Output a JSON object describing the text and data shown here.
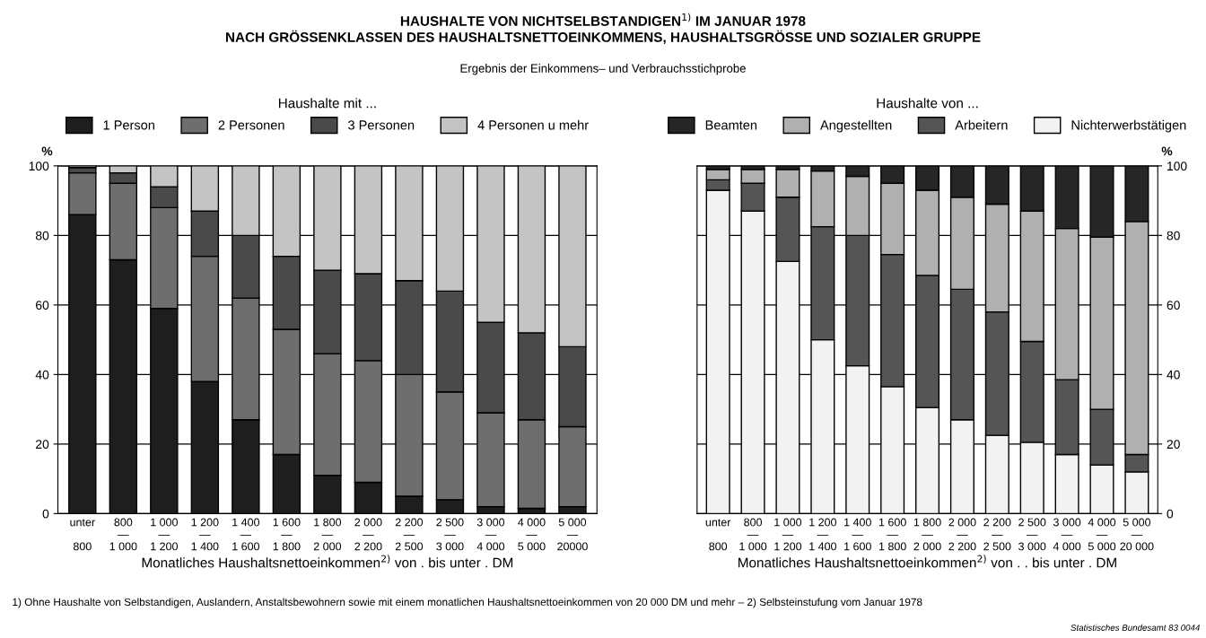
{
  "chart_data": [
    {
      "type": "bar",
      "stacked": true,
      "title": "HAUSHALTE VON NICHTSELBSTANDIGEN$^{1)}$ IM JANUAR 1978\nNACH GRÖSSENKLASSEN DES HAUSHALTSNETTOEINKOMMENS, HAUSHALTSGRÖSSE UND SOZIALER GRUPPE",
      "subtitle": "Ergebnis der Einkommens– und Verbrauchsstichprobe",
      "legend_title": "Haushalte mit ...",
      "xlabel": "Monatliches Haushaltsnettoeinkommen$^{2)}$ von . bis unter . DM",
      "ylabel": "%",
      "categories": [
        "unter\n\n800",
        "800\n—\n1 000",
        "1 000\n—\n1 200",
        "1 200\n—\n1 400",
        "1 400\n—\n1 600",
        "1 600\n—\n1 800",
        "1 800\n—\n2 000",
        "2 000\n—\n2 200",
        "2 200\n—\n2 500",
        "2 500\n—\n3 000",
        "3 000\n—\n4 000",
        "4 000\n—\n5 000",
        "5 000\n—\n20000"
      ],
      "series": [
        {
          "name": "1 Person",
          "color": "#1e1e1e",
          "values": [
            86,
            73,
            59,
            38,
            27,
            17,
            11,
            9,
            5,
            4,
            2,
            1.5,
            2
          ]
        },
        {
          "name": "2 Personen",
          "color": "#6e6e6e",
          "values": [
            12,
            22,
            29,
            36,
            35,
            36,
            35,
            35,
            35,
            31,
            27,
            25.5,
            23
          ]
        },
        {
          "name": "3 Personen",
          "color": "#4a4a4a",
          "values": [
            1.5,
            3,
            6,
            13,
            18,
            21,
            24,
            25,
            27,
            29,
            26,
            25,
            23
          ]
        },
        {
          "name": "4 Personen u mehr",
          "color": "#c4c4c4",
          "values": [
            0.5,
            2,
            6,
            13,
            20,
            26,
            30,
            31,
            33,
            36,
            45,
            48,
            52
          ]
        }
      ],
      "ylim": [
        0,
        100
      ],
      "yticks": [
        0,
        20,
        40,
        60,
        80,
        100
      ],
      "grid": "y",
      "legend": "top",
      "annotations": [
        "1) Ohne Haushalte von Selbstandigen, Auslandern, Anstaltsbewohnern sowie mit einem monatlichen Haushaltsnettoeinkommen von 20 000 DM und mehr – 2) Selbsteinstufung vom Januar 1978",
        "Statistisches Bundesamt 83 0044"
      ]
    },
    {
      "type": "bar",
      "stacked": true,
      "legend_title": "Haushalte von ...",
      "xlabel": "Monatliches Haushaltsnettoeinkommen$^{2)}$ von . . bis unter . DM",
      "y2label": "%",
      "categories": [
        "unter\n\n800",
        "800\n—\n1 000",
        "1 000\n—\n1 200",
        "1 200\n—\n1 400",
        "1 400\n—\n1 600",
        "1 600\n—\n1 800",
        "1 800\n—\n2 000",
        "2 000\n—\n2 200",
        "2 200\n—\n2 500",
        "2 500\n—\n3 000",
        "3 000\n—\n4 000",
        "4 000\n—\n5 000",
        "5 000\n—\n20 000"
      ],
      "series": [
        {
          "name": "Nichterwerbstätigen",
          "color": "#f2f2f2",
          "axis": "y2",
          "values": [
            93,
            87,
            72.5,
            50,
            42.5,
            36.5,
            30.5,
            27,
            22.5,
            20.5,
            17,
            14,
            12
          ]
        },
        {
          "name": "Arbeitern",
          "color": "#555555",
          "axis": "y2",
          "values": [
            3,
            8,
            18.5,
            32.5,
            37.5,
            38,
            38,
            37.5,
            35.5,
            29,
            21.5,
            16,
            5
          ]
        },
        {
          "name": "Angestellten",
          "color": "#b0b0b0",
          "axis": "y2",
          "values": [
            3,
            4,
            8,
            16,
            17,
            20.5,
            24.5,
            26.5,
            31,
            37.5,
            43.5,
            49.5,
            67
          ]
        },
        {
          "name": "Beamten",
          "color": "#262626",
          "axis": "y2",
          "values": [
            1,
            1,
            1,
            1.5,
            3,
            5,
            7,
            9,
            11,
            13,
            18,
            20.5,
            16
          ]
        }
      ],
      "y2lim": [
        0,
        100
      ],
      "y2ticks": [
        0,
        20,
        40,
        60,
        80,
        100
      ],
      "grid": "y",
      "legend": "top"
    }
  ]
}
